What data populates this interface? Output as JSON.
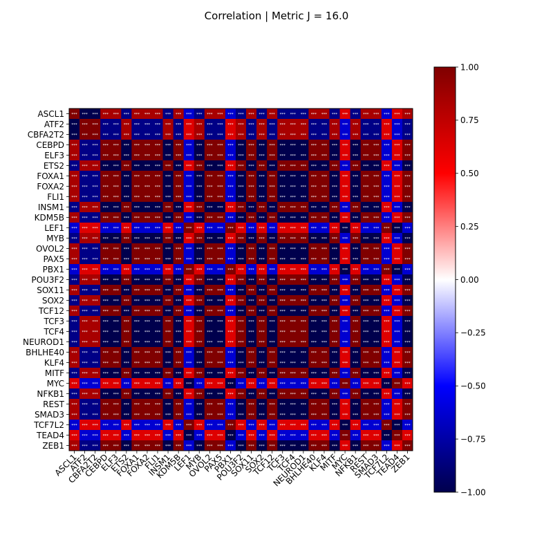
{
  "chart_data": {
    "type": "heatmap",
    "title": "Correlation | Metric J = 16.0",
    "labels": [
      "ASCL1",
      "ATF2",
      "CBFA2T2",
      "CEBPD",
      "ELF3",
      "ETS2",
      "FOXA1",
      "FOXA2",
      "FLI1",
      "INSM1",
      "KDM5B",
      "LEF1",
      "MYB",
      "OVOL2",
      "PAX5",
      "PBX1",
      "POU3F2",
      "SOX11",
      "SOX2",
      "TCF12",
      "TCF3",
      "TCF4",
      "NEUROD1",
      "BHLHE40",
      "KLF4",
      "MITF",
      "MYC",
      "NFKB1",
      "REST",
      "SMAD3",
      "TCF7L2",
      "TEAD4",
      "ZEB1"
    ],
    "values": [
      [
        1,
        -1,
        -1,
        0.84,
        0.84,
        -0.84,
        0.84,
        0.84,
        0.84,
        -0.84,
        0.84,
        -0.63,
        -0.84,
        0.84,
        0.84,
        -0.63,
        -0.84,
        0.84,
        -0.84,
        0.84,
        -0.84,
        -0.84,
        -0.84,
        0.84,
        0.84,
        -0.84,
        0.63,
        -0.84,
        0.84,
        0.84,
        -0.63,
        0.63,
        0.84
      ],
      [
        -1,
        1,
        1,
        -0.84,
        -0.84,
        0.84,
        -0.84,
        -0.84,
        -0.84,
        0.84,
        -0.84,
        0.63,
        0.84,
        -0.84,
        -0.84,
        0.63,
        0.84,
        -0.84,
        0.84,
        -0.84,
        0.84,
        0.84,
        0.84,
        -0.84,
        -0.84,
        0.84,
        -0.63,
        0.84,
        -0.84,
        -0.84,
        0.63,
        -0.63,
        -0.84
      ],
      [
        -1,
        1,
        1,
        -0.84,
        -0.84,
        0.84,
        -0.84,
        -0.84,
        -0.84,
        0.84,
        -0.84,
        0.63,
        0.84,
        -0.84,
        -0.84,
        0.63,
        0.84,
        -0.84,
        0.84,
        -0.84,
        0.84,
        0.84,
        0.84,
        -0.84,
        -0.84,
        0.84,
        -0.63,
        0.84,
        -0.84,
        -0.84,
        0.63,
        -0.63,
        -0.84
      ],
      [
        0.84,
        -0.84,
        -0.84,
        1,
        1,
        -1,
        1,
        1,
        1,
        -1,
        1,
        -0.63,
        -1,
        1,
        1,
        -0.63,
        -1,
        1,
        -1,
        1,
        -1,
        -1,
        -1,
        1,
        1,
        -1,
        0.63,
        -1,
        1,
        1,
        -0.63,
        0.63,
        1
      ],
      [
        0.84,
        -0.84,
        -0.84,
        1,
        1,
        -1,
        1,
        1,
        1,
        -1,
        1,
        -0.63,
        -1,
        1,
        1,
        -0.63,
        -1,
        1,
        -1,
        1,
        -1,
        -1,
        -1,
        1,
        1,
        -1,
        0.63,
        -1,
        1,
        1,
        -0.63,
        0.63,
        1
      ],
      [
        -0.84,
        0.84,
        0.84,
        -1,
        -1,
        1,
        -1,
        -1,
        -1,
        1,
        -1,
        0.63,
        1,
        -1,
        -1,
        0.63,
        1,
        -1,
        1,
        -1,
        1,
        1,
        1,
        -1,
        -1,
        1,
        -0.63,
        1,
        -1,
        -1,
        0.63,
        -0.63,
        -1
      ],
      [
        0.84,
        -0.84,
        -0.84,
        1,
        1,
        -1,
        1,
        1,
        1,
        -1,
        1,
        -0.63,
        -1,
        1,
        1,
        -0.63,
        -1,
        1,
        -1,
        1,
        -1,
        -1,
        -1,
        1,
        1,
        -1,
        0.63,
        -1,
        1,
        1,
        -0.63,
        0.63,
        1
      ],
      [
        0.84,
        -0.84,
        -0.84,
        1,
        1,
        -1,
        1,
        1,
        1,
        -1,
        1,
        -0.63,
        -1,
        1,
        1,
        -0.63,
        -1,
        1,
        -1,
        1,
        -1,
        -1,
        -1,
        1,
        1,
        -1,
        0.63,
        -1,
        1,
        1,
        -0.63,
        0.63,
        1
      ],
      [
        0.84,
        -0.84,
        -0.84,
        1,
        1,
        -1,
        1,
        1,
        1,
        -1,
        1,
        -0.63,
        -1,
        1,
        1,
        -0.63,
        -1,
        1,
        -1,
        1,
        -1,
        -1,
        -1,
        1,
        1,
        -1,
        0.63,
        -1,
        1,
        1,
        -0.63,
        0.63,
        1
      ],
      [
        -0.84,
        0.84,
        0.84,
        -1,
        -1,
        1,
        -1,
        -1,
        -1,
        1,
        -1,
        0.63,
        1,
        -1,
        -1,
        0.63,
        1,
        -1,
        1,
        -1,
        1,
        1,
        1,
        -1,
        -1,
        1,
        -0.63,
        1,
        -1,
        -1,
        0.63,
        -0.63,
        -1
      ],
      [
        0.84,
        -0.84,
        -0.84,
        1,
        1,
        -1,
        1,
        1,
        1,
        -1,
        1,
        -0.63,
        -1,
        1,
        1,
        -0.63,
        -1,
        1,
        -1,
        1,
        -1,
        -1,
        -1,
        1,
        1,
        -1,
        0.63,
        -1,
        1,
        1,
        -0.63,
        0.63,
        1
      ],
      [
        -0.63,
        0.63,
        0.63,
        -0.63,
        -0.63,
        0.63,
        -0.63,
        -0.63,
        -0.63,
        0.63,
        -0.63,
        1,
        0.63,
        -0.63,
        -0.63,
        1,
        0.63,
        -0.63,
        0.63,
        -0.63,
        0.63,
        0.63,
        0.63,
        -0.63,
        -0.63,
        0.63,
        -1,
        0.63,
        -0.63,
        -0.63,
        1,
        -1,
        -0.63
      ],
      [
        -0.84,
        0.84,
        0.84,
        -1,
        -1,
        1,
        -1,
        -1,
        -1,
        1,
        -1,
        0.63,
        1,
        -1,
        -1,
        0.63,
        1,
        -1,
        1,
        -1,
        1,
        1,
        1,
        -1,
        -1,
        1,
        -0.63,
        1,
        -1,
        -1,
        0.63,
        -0.63,
        -1
      ],
      [
        0.84,
        -0.84,
        -0.84,
        1,
        1,
        -1,
        1,
        1,
        1,
        -1,
        1,
        -0.63,
        -1,
        1,
        1,
        -0.63,
        -1,
        1,
        -1,
        1,
        -1,
        -1,
        -1,
        1,
        1,
        -1,
        0.63,
        -1,
        1,
        1,
        -0.63,
        0.63,
        1
      ],
      [
        0.84,
        -0.84,
        -0.84,
        1,
        1,
        -1,
        1,
        1,
        1,
        -1,
        1,
        -0.63,
        -1,
        1,
        1,
        -0.63,
        -1,
        1,
        -1,
        1,
        -1,
        -1,
        -1,
        1,
        1,
        -1,
        0.63,
        -1,
        1,
        1,
        -0.63,
        0.63,
        1
      ],
      [
        -0.63,
        0.63,
        0.63,
        -0.63,
        -0.63,
        0.63,
        -0.63,
        -0.63,
        -0.63,
        0.63,
        -0.63,
        1,
        0.63,
        -0.63,
        -0.63,
        1,
        0.63,
        -0.63,
        0.63,
        -0.63,
        0.63,
        0.63,
        0.63,
        -0.63,
        -0.63,
        0.63,
        -1,
        0.63,
        -0.63,
        -0.63,
        1,
        -1,
        -0.63
      ],
      [
        -0.84,
        0.84,
        0.84,
        -1,
        -1,
        1,
        -1,
        -1,
        -1,
        1,
        -1,
        0.63,
        1,
        -1,
        -1,
        0.63,
        1,
        -1,
        1,
        -1,
        1,
        1,
        1,
        -1,
        -1,
        1,
        -0.63,
        1,
        -1,
        -1,
        0.63,
        -0.63,
        -1
      ],
      [
        0.84,
        -0.84,
        -0.84,
        1,
        1,
        -1,
        1,
        1,
        1,
        -1,
        1,
        -0.63,
        -1,
        1,
        1,
        -0.63,
        -1,
        1,
        -1,
        1,
        -1,
        -1,
        -1,
        1,
        1,
        -1,
        0.63,
        -1,
        1,
        1,
        -0.63,
        0.63,
        1
      ],
      [
        -0.84,
        0.84,
        0.84,
        -1,
        -1,
        1,
        -1,
        -1,
        -1,
        1,
        -1,
        0.63,
        1,
        -1,
        -1,
        0.63,
        1,
        -1,
        1,
        -1,
        1,
        1,
        1,
        -1,
        -1,
        1,
        -0.63,
        1,
        -1,
        -1,
        0.63,
        -0.63,
        -1
      ],
      [
        0.84,
        -0.84,
        -0.84,
        1,
        1,
        -1,
        1,
        1,
        1,
        -1,
        1,
        -0.63,
        -1,
        1,
        1,
        -0.63,
        -1,
        1,
        -1,
        1,
        -1,
        -1,
        -1,
        1,
        1,
        -1,
        0.63,
        -1,
        1,
        1,
        -0.63,
        0.63,
        1
      ],
      [
        -0.84,
        0.84,
        0.84,
        -1,
        -1,
        1,
        -1,
        -1,
        -1,
        1,
        -1,
        0.63,
        1,
        -1,
        -1,
        0.63,
        1,
        -1,
        1,
        -1,
        1,
        1,
        1,
        -1,
        -1,
        1,
        -0.63,
        1,
        -1,
        -1,
        0.63,
        -0.63,
        -1
      ],
      [
        -0.84,
        0.84,
        0.84,
        -1,
        -1,
        1,
        -1,
        -1,
        -1,
        1,
        -1,
        0.63,
        1,
        -1,
        -1,
        0.63,
        1,
        -1,
        1,
        -1,
        1,
        1,
        1,
        -1,
        -1,
        1,
        -0.63,
        1,
        -1,
        -1,
        0.63,
        -0.63,
        -1
      ],
      [
        -0.84,
        0.84,
        0.84,
        -1,
        -1,
        1,
        -1,
        -1,
        -1,
        1,
        -1,
        0.63,
        1,
        -1,
        -1,
        0.63,
        1,
        -1,
        1,
        -1,
        1,
        1,
        1,
        -1,
        -1,
        1,
        -0.63,
        1,
        -1,
        -1,
        0.63,
        -0.63,
        -1
      ],
      [
        0.84,
        -0.84,
        -0.84,
        1,
        1,
        -1,
        1,
        1,
        1,
        -1,
        1,
        -0.63,
        -1,
        1,
        1,
        -0.63,
        -1,
        1,
        -1,
        1,
        -1,
        -1,
        -1,
        1,
        1,
        -1,
        0.63,
        -1,
        1,
        1,
        -0.63,
        0.63,
        1
      ],
      [
        0.84,
        -0.84,
        -0.84,
        1,
        1,
        -1,
        1,
        1,
        1,
        -1,
        1,
        -0.63,
        -1,
        1,
        1,
        -0.63,
        -1,
        1,
        -1,
        1,
        -1,
        -1,
        -1,
        1,
        1,
        -1,
        0.63,
        -1,
        1,
        1,
        -0.63,
        0.63,
        1
      ],
      [
        -0.84,
        0.84,
        0.84,
        -1,
        -1,
        1,
        -1,
        -1,
        -1,
        1,
        -1,
        0.63,
        1,
        -1,
        -1,
        0.63,
        1,
        -1,
        1,
        -1,
        1,
        1,
        1,
        -1,
        -1,
        1,
        -0.63,
        1,
        -1,
        -1,
        0.63,
        -0.63,
        -1
      ],
      [
        0.63,
        -0.63,
        -0.63,
        0.63,
        0.63,
        -0.63,
        0.63,
        0.63,
        0.63,
        -0.63,
        0.63,
        -1,
        -0.63,
        0.63,
        0.63,
        -1,
        -0.63,
        0.63,
        -0.63,
        0.63,
        -0.63,
        -0.63,
        -0.63,
        0.63,
        0.63,
        -0.63,
        1,
        -0.63,
        0.63,
        0.63,
        -1,
        1,
        0.63
      ],
      [
        -0.84,
        0.84,
        0.84,
        -1,
        -1,
        1,
        -1,
        -1,
        -1,
        1,
        -1,
        0.63,
        1,
        -1,
        -1,
        0.63,
        1,
        -1,
        1,
        -1,
        1,
        1,
        1,
        -1,
        -1,
        1,
        -0.63,
        1,
        -1,
        -1,
        0.63,
        -0.63,
        -1
      ],
      [
        0.84,
        -0.84,
        -0.84,
        1,
        1,
        -1,
        1,
        1,
        1,
        -1,
        1,
        -0.63,
        -1,
        1,
        1,
        -0.63,
        -1,
        1,
        -1,
        1,
        -1,
        -1,
        -1,
        1,
        1,
        -1,
        0.63,
        -1,
        1,
        1,
        -0.63,
        0.63,
        1
      ],
      [
        0.84,
        -0.84,
        -0.84,
        1,
        1,
        -1,
        1,
        1,
        1,
        -1,
        1,
        -0.63,
        -1,
        1,
        1,
        -0.63,
        -1,
        1,
        -1,
        1,
        -1,
        -1,
        -1,
        1,
        1,
        -1,
        0.63,
        -1,
        1,
        1,
        -0.63,
        0.63,
        1
      ],
      [
        -0.63,
        0.63,
        0.63,
        -0.63,
        -0.63,
        0.63,
        -0.63,
        -0.63,
        -0.63,
        0.63,
        -0.63,
        1,
        0.63,
        -0.63,
        -0.63,
        1,
        0.63,
        -0.63,
        0.63,
        -0.63,
        0.63,
        0.63,
        0.63,
        -0.63,
        -0.63,
        0.63,
        -1,
        0.63,
        -0.63,
        -0.63,
        1,
        -1,
        -0.63
      ],
      [
        0.63,
        -0.63,
        -0.63,
        0.63,
        0.63,
        -0.63,
        0.63,
        0.63,
        0.63,
        -0.63,
        0.63,
        -1,
        -0.63,
        0.63,
        0.63,
        -1,
        -0.63,
        0.63,
        -0.63,
        0.63,
        -0.63,
        -0.63,
        -0.63,
        0.63,
        0.63,
        -0.63,
        1,
        -0.63,
        0.63,
        0.63,
        -1,
        1,
        0.63
      ],
      [
        0.84,
        -0.84,
        -0.84,
        1,
        1,
        -1,
        1,
        1,
        1,
        -1,
        1,
        -0.63,
        -1,
        1,
        1,
        -0.63,
        -1,
        1,
        -1,
        1,
        -1,
        -1,
        -1,
        1,
        1,
        -1,
        0.63,
        -1,
        1,
        1,
        -0.63,
        0.63,
        1
      ]
    ],
    "cell_annotation": "***",
    "colormap": "seismic",
    "vmin": -1.0,
    "vmax": 1.0,
    "colorbar_ticks": [
      "1.00",
      "0.75",
      "0.50",
      "0.25",
      "0.00",
      "−0.25",
      "−0.50",
      "−0.75",
      "−1.00"
    ],
    "colorbar_values": [
      1.0,
      0.75,
      0.5,
      0.25,
      0.0,
      -0.25,
      -0.5,
      -0.75,
      -1.0
    ],
    "colors": {
      "negative_max": "#00004c",
      "neutral": "#ffffff",
      "positive_max": "#7f0000"
    },
    "legend_placement": "right colorbar",
    "grid": false
  }
}
